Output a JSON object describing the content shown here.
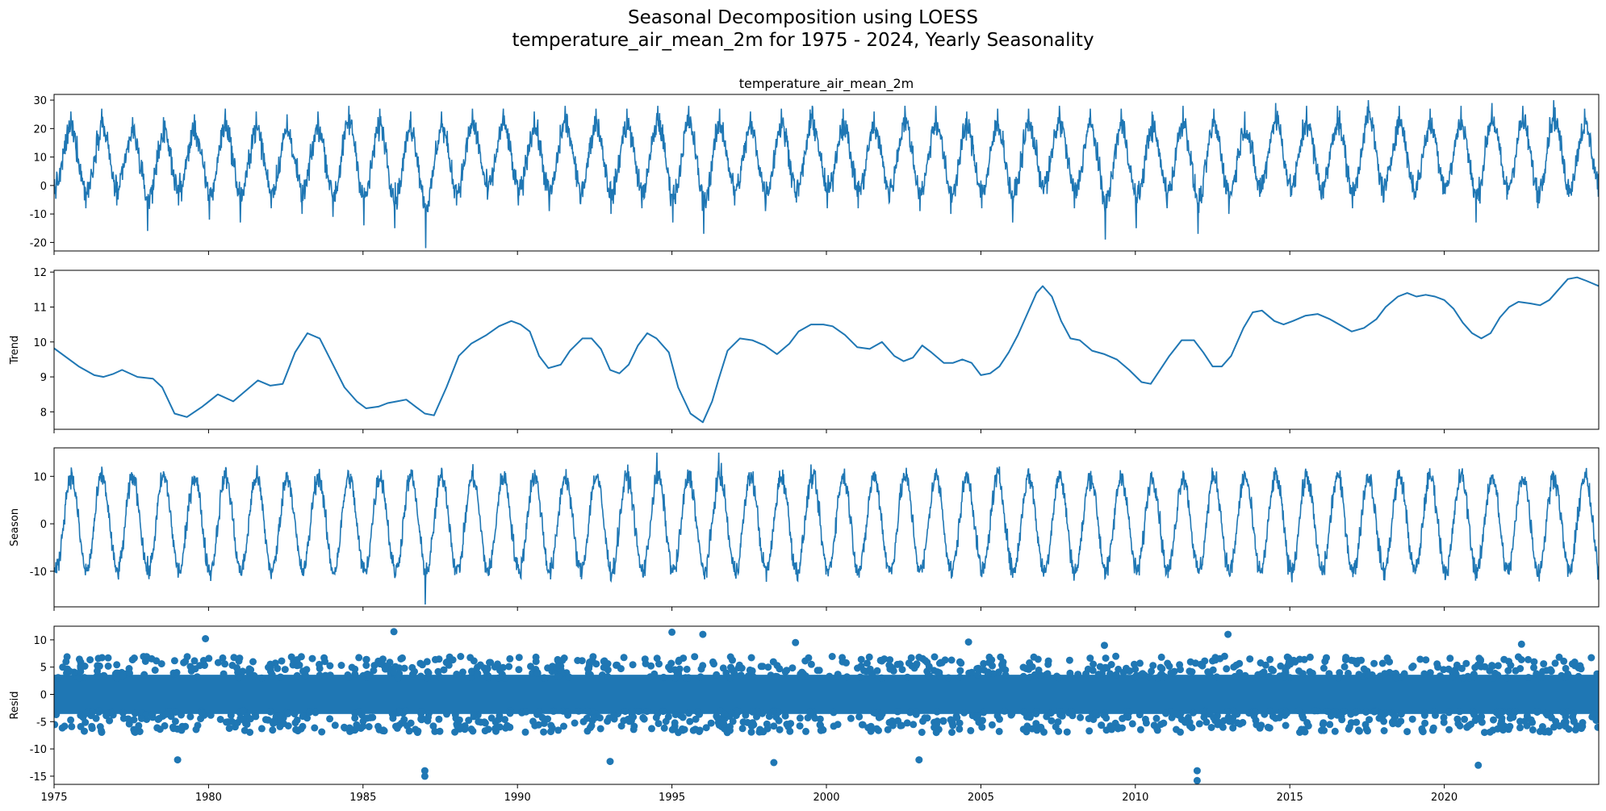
{
  "figure": {
    "title_line1": "Seasonal Decomposition using LOESS",
    "title_line2": "temperature_air_mean_2m for 1975 - 2024, Yearly Seasonality"
  },
  "chart_data": [
    {
      "type": "line",
      "panel": "observed",
      "title": "temperature_air_mean_2m",
      "ylabel": "",
      "xlim": [
        1975,
        2025
      ],
      "ylim": [
        -23,
        32
      ],
      "yticks": [
        -20,
        -10,
        0,
        10,
        20,
        30
      ],
      "series": [
        {
          "name": "temperature_air_mean_2m",
          "kind": "daily line, yearly cycle",
          "summer_peaks": [
            26,
            27,
            24,
            24,
            25,
            27,
            26,
            25,
            26,
            28,
            27,
            26,
            26,
            27,
            27,
            26,
            28,
            27,
            27,
            28,
            28,
            27,
            26,
            27,
            28,
            27,
            26,
            28,
            28,
            26,
            27,
            27,
            28,
            27,
            27,
            26,
            28,
            27,
            26,
            29,
            28,
            28,
            30,
            28,
            27,
            28,
            29,
            28,
            30,
            27
          ],
          "winter_minima": [
            -3,
            -8,
            -7,
            -16,
            -7,
            -12,
            -13,
            -8,
            -10,
            -11,
            -14,
            -15,
            -22,
            -7,
            -5,
            -7,
            -9,
            -6,
            -10,
            -8,
            -13,
            -17,
            -7,
            -9,
            -6,
            -8,
            -8,
            -6,
            -9,
            -10,
            -8,
            -13,
            -3,
            -8,
            -19,
            -15,
            -8,
            -17,
            -10,
            -4,
            -4,
            -5,
            -8,
            -6,
            -5,
            -3,
            -13,
            -5,
            -8,
            -4
          ],
          "color": "#1f77b4"
        }
      ]
    },
    {
      "type": "line",
      "panel": "trend",
      "ylabel": "Trend",
      "xlim": [
        1975,
        2025
      ],
      "ylim": [
        7.5,
        12.05
      ],
      "yticks": [
        8,
        9,
        10,
        11,
        12
      ],
      "series": [
        {
          "name": "Trend",
          "color": "#1f77b4",
          "x": [
            1975.0,
            1975.8,
            1976.3,
            1976.6,
            1976.9,
            1977.2,
            1977.7,
            1978.2,
            1978.5,
            1978.9,
            1979.3,
            1979.8,
            1980.3,
            1980.8,
            1981.2,
            1981.6,
            1982.0,
            1982.4,
            1982.8,
            1983.2,
            1983.6,
            1984.0,
            1984.4,
            1984.8,
            1985.1,
            1985.5,
            1985.8,
            1986.1,
            1986.4,
            1986.7,
            1987.0,
            1987.3,
            1987.7,
            1988.1,
            1988.5,
            1989.0,
            1989.4,
            1989.8,
            1990.1,
            1990.4,
            1990.7,
            1991.0,
            1991.4,
            1991.7,
            1992.1,
            1992.4,
            1992.7,
            1993.0,
            1993.3,
            1993.6,
            1993.9,
            1994.2,
            1994.5,
            1994.9,
            1995.2,
            1995.6,
            1996.0,
            1996.3,
            1996.5,
            1996.8,
            1997.2,
            1997.6,
            1998.0,
            1998.4,
            1998.8,
            1999.1,
            1999.5,
            1999.9,
            2000.2,
            2000.6,
            2001.0,
            2001.4,
            2001.8,
            2002.2,
            2002.5,
            2002.8,
            2003.1,
            2003.4,
            2003.8,
            2004.1,
            2004.4,
            2004.7,
            2005.0,
            2005.3,
            2005.6,
            2005.9,
            2006.2,
            2006.5,
            2006.8,
            2007.0,
            2007.3,
            2007.6,
            2007.9,
            2008.2,
            2008.6,
            2009.0,
            2009.4,
            2009.8,
            2010.2,
            2010.5,
            2010.8,
            2011.1,
            2011.5,
            2011.9,
            2012.2,
            2012.5,
            2012.8,
            2013.1,
            2013.5,
            2013.8,
            2014.1,
            2014.5,
            2014.8,
            2015.1,
            2015.5,
            2015.9,
            2016.3,
            2016.7,
            2017.0,
            2017.4,
            2017.8,
            2018.1,
            2018.5,
            2018.8,
            2019.1,
            2019.4,
            2019.7,
            2020.0,
            2020.3,
            2020.6,
            2020.9,
            2021.2,
            2021.5,
            2021.8,
            2022.1,
            2022.4,
            2022.8,
            2023.1,
            2023.4,
            2023.7,
            2024.0,
            2024.3,
            2024.6,
            2025.0
          ],
          "y": [
            9.82,
            9.3,
            9.05,
            9.0,
            9.08,
            9.2,
            9.0,
            8.95,
            8.7,
            7.95,
            7.85,
            8.15,
            8.5,
            8.3,
            8.6,
            8.9,
            8.75,
            8.8,
            9.7,
            10.25,
            10.1,
            9.4,
            8.7,
            8.3,
            8.1,
            8.15,
            8.25,
            8.3,
            8.35,
            8.15,
            7.95,
            7.9,
            8.7,
            9.6,
            9.95,
            10.2,
            10.45,
            10.6,
            10.5,
            10.3,
            9.6,
            9.25,
            9.35,
            9.75,
            10.1,
            10.1,
            9.8,
            9.2,
            9.1,
            9.35,
            9.9,
            10.25,
            10.1,
            9.7,
            8.7,
            7.95,
            7.7,
            8.3,
            8.9,
            9.75,
            10.1,
            10.05,
            9.9,
            9.65,
            9.95,
            10.3,
            10.5,
            10.5,
            10.45,
            10.2,
            9.85,
            9.8,
            10.0,
            9.6,
            9.45,
            9.55,
            9.9,
            9.7,
            9.4,
            9.4,
            9.5,
            9.4,
            9.05,
            9.1,
            9.3,
            9.7,
            10.2,
            10.8,
            11.4,
            11.6,
            11.3,
            10.6,
            10.1,
            10.05,
            9.75,
            9.65,
            9.5,
            9.2,
            8.85,
            8.8,
            9.2,
            9.6,
            10.05,
            10.05,
            9.7,
            9.3,
            9.3,
            9.6,
            10.4,
            10.85,
            10.9,
            10.6,
            10.5,
            10.6,
            10.75,
            10.8,
            10.65,
            10.45,
            10.3,
            10.4,
            10.65,
            11.0,
            11.3,
            11.4,
            11.3,
            11.35,
            11.3,
            11.2,
            10.95,
            10.55,
            10.25,
            10.1,
            10.25,
            10.7,
            11.0,
            11.15,
            11.1,
            11.05,
            11.2,
            11.5,
            11.8,
            11.85,
            11.75,
            11.6
          ]
        }
      ]
    },
    {
      "type": "line",
      "panel": "season",
      "ylabel": "Season",
      "xlim": [
        1975,
        2025
      ],
      "ylim": [
        -17.5,
        16
      ],
      "yticks": [
        -10,
        0,
        10
      ],
      "series": [
        {
          "name": "Season",
          "kind": "daily line, yearly cycle",
          "amplitude_approx": 12,
          "extremes": [
            -17,
            15
          ],
          "color": "#1f77b4"
        }
      ]
    },
    {
      "type": "scatter",
      "panel": "resid",
      "ylabel": "Resid",
      "xlabel": "",
      "xlim": [
        1975,
        2025
      ],
      "ylim": [
        -16.5,
        12.5
      ],
      "yticks": [
        -15,
        -10,
        -5,
        0,
        5,
        10
      ],
      "xticks": [
        1975,
        1980,
        1985,
        1990,
        1995,
        2000,
        2005,
        2010,
        2015,
        2020
      ],
      "series": [
        {
          "name": "Resid",
          "kind": "dense daily markers",
          "typical_range": [
            -5,
            5
          ],
          "extremes": [
            -16,
            12
          ],
          "color": "#1f77b4"
        }
      ]
    }
  ]
}
